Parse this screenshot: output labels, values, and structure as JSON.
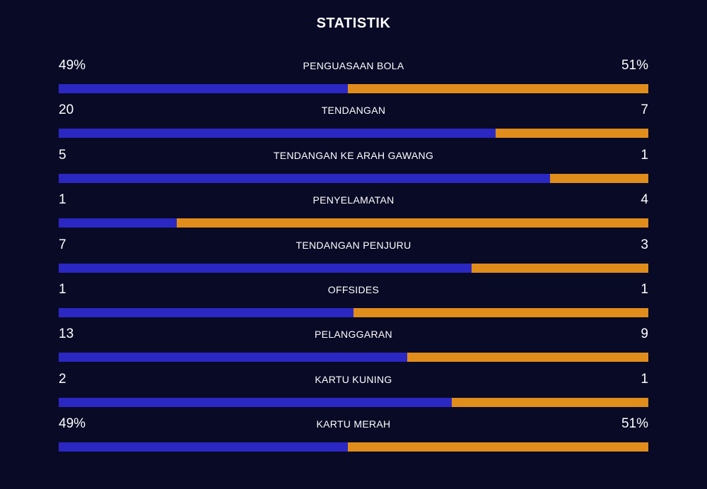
{
  "title": "STATISTIK",
  "colors": {
    "background": "#090a26",
    "home": "#2b27c2",
    "away": "#e08d1c",
    "text": "#ffffff"
  },
  "stats": [
    {
      "label": "PENGUASAAN BOLA",
      "left": "49%",
      "right": "51%",
      "home_share": 0.49
    },
    {
      "label": "TENDANGAN",
      "left": "20",
      "right": "7",
      "home_share": 0.7407
    },
    {
      "label": "TENDANGAN KE ARAH GAWANG",
      "left": "5",
      "right": "1",
      "home_share": 0.8333
    },
    {
      "label": "PENYELAMATAN",
      "left": "1",
      "right": "4",
      "home_share": 0.2
    },
    {
      "label": "TENDANGAN PENJURU",
      "left": "7",
      "right": "3",
      "home_share": 0.7
    },
    {
      "label": "OFFSIDES",
      "left": "1",
      "right": "1",
      "home_share": 0.5
    },
    {
      "label": "PELANGGARAN",
      "left": "13",
      "right": "9",
      "home_share": 0.5909
    },
    {
      "label": "KARTU KUNING",
      "left": "2",
      "right": "1",
      "home_share": 0.6667
    },
    {
      "label": "KARTU MERAH",
      "left": "49%",
      "right": "51%",
      "home_share": 0.49
    }
  ]
}
